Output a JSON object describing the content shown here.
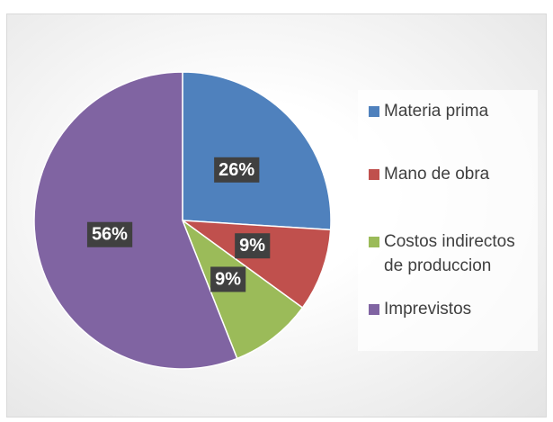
{
  "chart_data": {
    "type": "pie",
    "categories": [
      "Materia prima",
      "Mano de obra",
      "Costos indirectos de produccion",
      "Imprevistos"
    ],
    "values": [
      26,
      9,
      9,
      56
    ],
    "value_labels": [
      "26%",
      "9%",
      "9%",
      "56%"
    ],
    "colors": [
      "#4f81bd",
      "#c0504d",
      "#9bbb59",
      "#8064a2"
    ],
    "legend": "right"
  }
}
